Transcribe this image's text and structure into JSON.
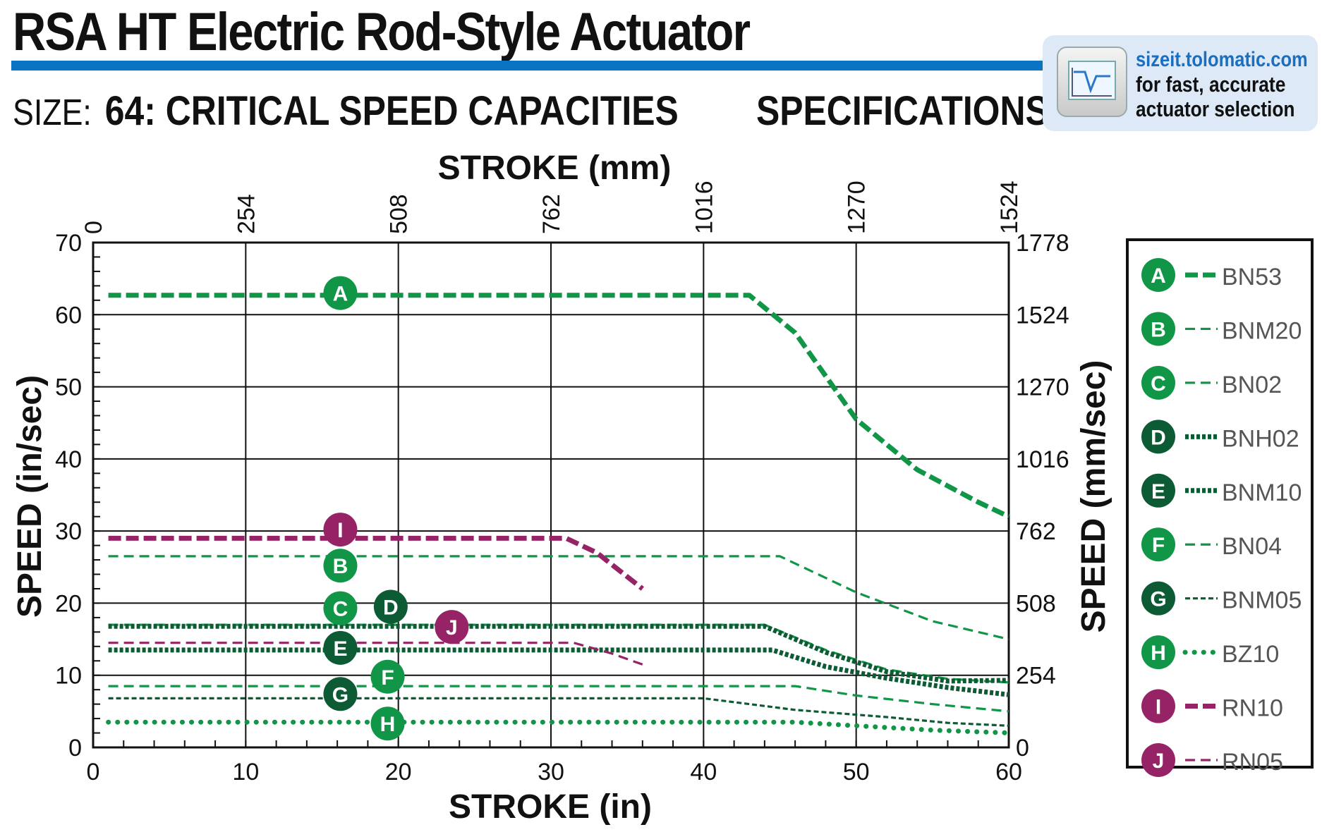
{
  "header": {
    "title": "RSA HT Electric Rod-Style Actuator",
    "size_label": "SIZE:",
    "size_title": "64: CRITICAL SPEED CAPACITIES",
    "spec_label": "SPECIFICATIONS"
  },
  "badge": {
    "url": "sizeit.tolomatic.com",
    "line2": "for fast, accurate",
    "line3": "actuator selection"
  },
  "colors": {
    "green": "#119648",
    "dark_green": "#0d5b34",
    "magenta": "#962366",
    "accent_blue": "#0a73c2"
  },
  "chart_data": {
    "type": "line",
    "xlabel": "STROKE (in)",
    "ylabel": "SPEED (in/sec)",
    "x2label": "STROKE (mm)",
    "y2label": "SPEED (mm/sec)",
    "xlim": [
      0,
      60
    ],
    "ylim": [
      0,
      70
    ],
    "grid": true,
    "legend_position": "right",
    "x_ticks": [
      "0",
      "10",
      "20",
      "30",
      "40",
      "50",
      "60"
    ],
    "y_ticks": [
      "0",
      "10",
      "20",
      "30",
      "40",
      "50",
      "60",
      "70"
    ],
    "x2_ticks": [
      "0",
      "254",
      "508",
      "762",
      "1016",
      "1270",
      "1524"
    ],
    "y2_ticks": [
      "0",
      "254",
      "508",
      "762",
      "1016",
      "1270",
      "1524",
      "1778"
    ],
    "series": [
      {
        "id": "A",
        "name": "BN53",
        "color": "#119648",
        "style": "heavy-dash",
        "points": [
          [
            1,
            62.7
          ],
          [
            43,
            62.7
          ],
          [
            46,
            57.5
          ],
          [
            50,
            45.5
          ],
          [
            54,
            38.5
          ],
          [
            58,
            34
          ],
          [
            60,
            32
          ]
        ],
        "label_pos": [
          16.2,
          63
        ]
      },
      {
        "id": "B",
        "name": "BNM20",
        "color": "#119648",
        "style": "thin-dash",
        "points": [
          [
            1,
            26.5
          ],
          [
            45,
            26.5
          ],
          [
            50,
            21.5
          ],
          [
            55,
            17.5
          ],
          [
            60,
            15
          ]
        ],
        "label_pos": [
          16.2,
          25.2
        ]
      },
      {
        "id": "C",
        "name": "BN02",
        "color": "#119648",
        "style": "thin-dash",
        "points": [
          [
            1,
            17
          ],
          [
            44,
            17
          ],
          [
            48,
            13.5
          ],
          [
            52,
            10.8
          ],
          [
            56,
            9.5
          ],
          [
            60,
            9
          ]
        ],
        "label_pos": [
          16.2,
          19.3
        ]
      },
      {
        "id": "D",
        "name": "BNH02",
        "color": "#0d5b34",
        "style": "heavy-dot",
        "points": [
          [
            1,
            16.8
          ],
          [
            44,
            16.8
          ],
          [
            48,
            13.2
          ],
          [
            52,
            10.5
          ],
          [
            56,
            9.2
          ],
          [
            60,
            9.3
          ]
        ],
        "label_pos": [
          19.5,
          19.5
        ]
      },
      {
        "id": "E",
        "name": "BNM10",
        "color": "#0d5b34",
        "style": "heavy-dot",
        "points": [
          [
            1,
            13.5
          ],
          [
            44.5,
            13.5
          ],
          [
            48,
            11.2
          ],
          [
            52,
            9.6
          ],
          [
            56,
            8.3
          ],
          [
            60,
            7.3
          ]
        ],
        "label_pos": [
          16.2,
          13.8
        ]
      },
      {
        "id": "F",
        "name": "BN04",
        "color": "#119648",
        "style": "thin-dash",
        "points": [
          [
            1,
            8.5
          ],
          [
            46,
            8.5
          ],
          [
            50,
            7.2
          ],
          [
            55,
            6
          ],
          [
            60,
            5
          ]
        ],
        "label_pos": [
          19.3,
          9.8
        ]
      },
      {
        "id": "G",
        "name": "BNM05",
        "color": "#0d5b34",
        "style": "small-dash",
        "points": [
          [
            1,
            6.8
          ],
          [
            40,
            6.8
          ],
          [
            46,
            5.2
          ],
          [
            52,
            4.2
          ],
          [
            56,
            3.4
          ],
          [
            60,
            3
          ]
        ],
        "label_pos": [
          16.2,
          7.4
        ]
      },
      {
        "id": "H",
        "name": "BZ10",
        "color": "#119648",
        "style": "dots",
        "points": [
          [
            1,
            3.5
          ],
          [
            46,
            3.5
          ],
          [
            50,
            3
          ],
          [
            55,
            2.4
          ],
          [
            60,
            2
          ]
        ],
        "label_pos": [
          19.3,
          3.3
        ]
      },
      {
        "id": "I",
        "name": "RN10",
        "color": "#962366",
        "style": "heavy-dash",
        "points": [
          [
            1,
            29
          ],
          [
            31,
            29
          ],
          [
            33,
            27
          ],
          [
            36,
            22
          ]
        ],
        "label_pos": [
          16.2,
          30.2
        ]
      },
      {
        "id": "J",
        "name": "RN05",
        "color": "#962366",
        "style": "thin-dash",
        "points": [
          [
            1,
            14.5
          ],
          [
            31.5,
            14.5
          ],
          [
            34,
            13
          ],
          [
            36,
            11.5
          ]
        ],
        "label_pos": [
          23.5,
          16.7
        ]
      }
    ]
  }
}
